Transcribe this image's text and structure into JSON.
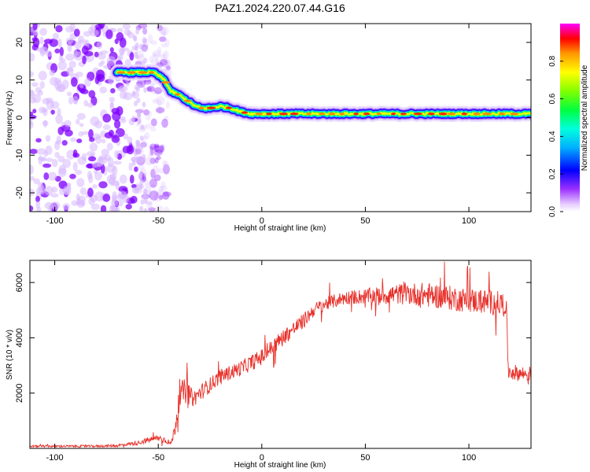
{
  "page_title": "PAZ1.2024.220.07.44.G16",
  "colors": {
    "snr_line": "#e8302a",
    "frame": "#000000",
    "noise_dark": "#7f00ff",
    "noise_light": "#d7b8ff"
  },
  "chart_data": [
    {
      "type": "heatmap",
      "name": "spectrogram",
      "xlabel": "Height of straight line (km)",
      "ylabel": "Frequency (Hz)",
      "xlim": [
        -112,
        130
      ],
      "ylim": [
        -25,
        25
      ],
      "xticks": [
        -100,
        -50,
        0,
        50,
        100
      ],
      "yticks": [
        -20,
        -10,
        0,
        10,
        20
      ],
      "ridge": {
        "x": [
          -70,
          -60,
          -52,
          -47,
          -44,
          -40,
          -36,
          -32,
          -29,
          -25,
          -20,
          -15,
          -10,
          -5,
          0,
          20,
          40,
          60,
          80,
          100,
          120,
          130
        ],
        "y": [
          12,
          12,
          12,
          10,
          7,
          6,
          4.5,
          3,
          2.5,
          2.5,
          3,
          2.5,
          1.5,
          1,
          1,
          1,
          1,
          1,
          1,
          1,
          1,
          1
        ]
      },
      "noise_region_x": [
        -112,
        -45
      ],
      "noise_region_y": [
        -25,
        25
      ],
      "colorbar": {
        "label": "Normalized spectral amplitude",
        "ticks": [
          0.0,
          0.2,
          0.4,
          0.6,
          0.8
        ],
        "tick_labels": [
          "0.0",
          "0.2",
          "0.4",
          "0.6",
          "0.8"
        ],
        "range": [
          0,
          1
        ]
      }
    },
    {
      "type": "line",
      "name": "snr",
      "xlabel": "Height of straight line (km)",
      "ylabel": "SNR (10 * v/v)",
      "xlim": [
        -112,
        130
      ],
      "ylim": [
        0,
        6800
      ],
      "xticks": [
        -100,
        -50,
        0,
        50,
        100
      ],
      "yticks": [
        2000,
        4000,
        6000
      ],
      "series": [
        {
          "x": [
            -112,
            -100,
            -80,
            -70,
            -65,
            -60,
            -55,
            -50,
            -46,
            -44,
            -42,
            -40,
            -38,
            -36,
            -33,
            -30,
            -25,
            -20,
            -10,
            0,
            10,
            20,
            25,
            30,
            40,
            50,
            60,
            70,
            80,
            90,
            100,
            110,
            118,
            119,
            125,
            130
          ],
          "y": [
            80,
            80,
            80,
            100,
            150,
            200,
            300,
            380,
            300,
            150,
            700,
            1700,
            2100,
            2000,
            1800,
            2000,
            2300,
            2600,
            2900,
            3300,
            4000,
            4600,
            5000,
            5200,
            5450,
            5500,
            5550,
            5600,
            5550,
            5450,
            5350,
            5300,
            5200,
            2800,
            2700,
            2700
          ],
          "noise": [
            40,
            40,
            40,
            50,
            60,
            80,
            100,
            120,
            120,
            100,
            250,
            400,
            450,
            400,
            300,
            300,
            280,
            260,
            280,
            300,
            300,
            280,
            250,
            250,
            250,
            280,
            350,
            400,
            450,
            450,
            450,
            450,
            450,
            300,
            280,
            280
          ]
        }
      ]
    }
  ]
}
